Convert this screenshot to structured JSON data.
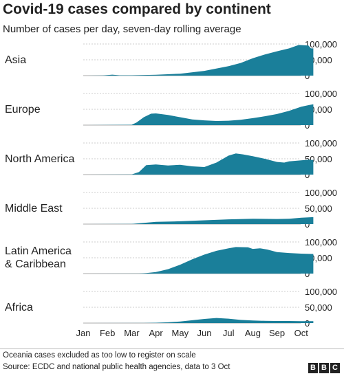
{
  "title": "Covid-19 cases compared by continent",
  "subtitle": "Number of cases per day, seven-day rolling average",
  "footer": {
    "note": "Oceania cases excluded as too low to register on scale",
    "source": "Source: ECDC and national public health agencies, data to 3 Oct",
    "logo_letters": [
      "B",
      "B",
      "C"
    ]
  },
  "colors": {
    "area": "#1a7f9a",
    "gridline": "#cccccc",
    "text": "#222222"
  },
  "chart_data": {
    "type": "area",
    "x_tick_labels": [
      "Jan",
      "Feb",
      "Mar",
      "Apr",
      "May",
      "Jun",
      "Jul",
      "Aug",
      "Sep",
      "Oct"
    ],
    "y_tick_labels": [
      "0",
      "50,000",
      "100,000"
    ],
    "ylim": [
      0,
      100000
    ],
    "grid": true,
    "panels": [
      {
        "name": "Asia",
        "label_lines": [
          "Asia"
        ],
        "points": [
          [
            0,
            0
          ],
          [
            0.8,
            500
          ],
          [
            1.2,
            3000
          ],
          [
            1.5,
            1000
          ],
          [
            2,
            1000
          ],
          [
            3,
            2500
          ],
          [
            4,
            6000
          ],
          [
            5,
            15000
          ],
          [
            6,
            30000
          ],
          [
            6.5,
            40000
          ],
          [
            7,
            55000
          ],
          [
            7.5,
            67000
          ],
          [
            8,
            77000
          ],
          [
            8.5,
            86000
          ],
          [
            8.9,
            97000
          ],
          [
            9.3,
            95000
          ],
          [
            9.4,
            86000
          ],
          [
            9.5,
            86000
          ]
        ]
      },
      {
        "name": "Europe",
        "label_lines": [
          "Europe"
        ],
        "points": [
          [
            0,
            0
          ],
          [
            2,
            1000
          ],
          [
            2.2,
            8000
          ],
          [
            2.5,
            25000
          ],
          [
            2.8,
            36000
          ],
          [
            3,
            37000
          ],
          [
            3.5,
            32000
          ],
          [
            4,
            25000
          ],
          [
            4.5,
            18000
          ],
          [
            5,
            15000
          ],
          [
            5.5,
            13000
          ],
          [
            6,
            14000
          ],
          [
            6.5,
            17000
          ],
          [
            7,
            22000
          ],
          [
            7.5,
            28000
          ],
          [
            8,
            35000
          ],
          [
            8.5,
            45000
          ],
          [
            9,
            58000
          ],
          [
            9.3,
            63000
          ],
          [
            9.5,
            66000
          ]
        ]
      },
      {
        "name": "North America",
        "label_lines": [
          "North America"
        ],
        "points": [
          [
            0,
            0
          ],
          [
            2,
            500
          ],
          [
            2.3,
            8000
          ],
          [
            2.6,
            30000
          ],
          [
            3,
            32000
          ],
          [
            3.5,
            29000
          ],
          [
            4,
            31000
          ],
          [
            4.5,
            26000
          ],
          [
            5,
            24000
          ],
          [
            5.5,
            38000
          ],
          [
            6,
            60000
          ],
          [
            6.3,
            67000
          ],
          [
            6.6,
            64000
          ],
          [
            7,
            58000
          ],
          [
            7.5,
            50000
          ],
          [
            8,
            40000
          ],
          [
            8.3,
            38000
          ],
          [
            8.5,
            42000
          ],
          [
            9,
            45000
          ],
          [
            9.3,
            47000
          ],
          [
            9.5,
            46000
          ]
        ]
      },
      {
        "name": "Middle East",
        "label_lines": [
          "Middle East"
        ],
        "points": [
          [
            0,
            0
          ],
          [
            2,
            500
          ],
          [
            2.5,
            4000
          ],
          [
            3,
            7000
          ],
          [
            4,
            9000
          ],
          [
            5,
            12000
          ],
          [
            6,
            15000
          ],
          [
            7,
            17000
          ],
          [
            8,
            16000
          ],
          [
            8.5,
            17000
          ],
          [
            9,
            20000
          ],
          [
            9.5,
            22000
          ]
        ]
      },
      {
        "name": "Latin America & Caribbean",
        "label_lines": [
          "Latin America",
          "& Caribbean"
        ],
        "points": [
          [
            0,
            0
          ],
          [
            2.3,
            200
          ],
          [
            2.6,
            1500
          ],
          [
            3,
            5000
          ],
          [
            3.5,
            14000
          ],
          [
            4,
            28000
          ],
          [
            4.5,
            45000
          ],
          [
            5,
            60000
          ],
          [
            5.5,
            72000
          ],
          [
            6,
            80000
          ],
          [
            6.3,
            84000
          ],
          [
            6.8,
            83000
          ],
          [
            7,
            78000
          ],
          [
            7.3,
            80000
          ],
          [
            7.6,
            76000
          ],
          [
            8,
            68000
          ],
          [
            8.5,
            65000
          ],
          [
            9,
            63000
          ],
          [
            9.5,
            62000
          ]
        ]
      },
      {
        "name": "Africa",
        "label_lines": [
          "Africa"
        ],
        "points": [
          [
            0,
            0
          ],
          [
            2.5,
            300
          ],
          [
            3,
            1000
          ],
          [
            3.5,
            2500
          ],
          [
            4,
            5000
          ],
          [
            4.5,
            9000
          ],
          [
            5,
            13000
          ],
          [
            5.5,
            16000
          ],
          [
            6,
            14000
          ],
          [
            6.5,
            10000
          ],
          [
            7,
            8000
          ],
          [
            7.5,
            7000
          ],
          [
            8,
            6500
          ],
          [
            8.5,
            6500
          ],
          [
            9,
            6000
          ],
          [
            9.5,
            6000
          ]
        ]
      }
    ]
  }
}
